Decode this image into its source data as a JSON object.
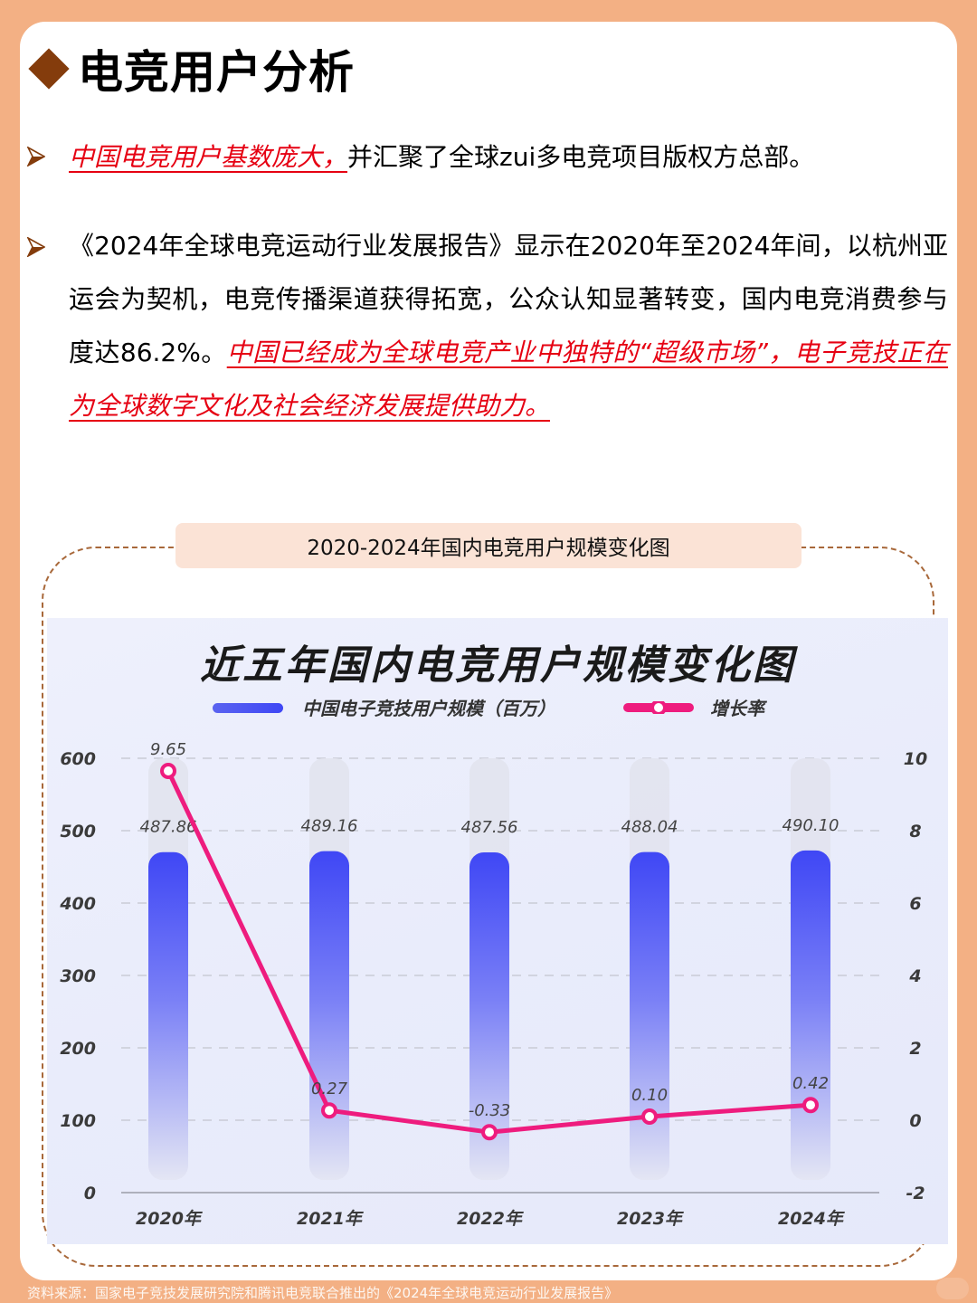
{
  "page": {
    "title": "电竞用户分析",
    "colors": {
      "background": "#F3B084",
      "title_diamond": "#843C0C",
      "highlight_red": "#E60012",
      "frame_dashed": "#A8683A",
      "caption_bg": "#FBE3D6",
      "bar_top": "#3F47F5",
      "bar_bottom": "#E6E8F6",
      "line": "#EE1C7E"
    }
  },
  "bullets": [
    {
      "icon": "arrow-bullet-icon",
      "highlight": "中国电竞用户基数庞大，",
      "text": "并汇聚了全球zui多电竞项目版权方总部。"
    },
    {
      "icon": "arrow-bullet-icon",
      "text": "《2024年全球电竞运动行业发展报告》显示在2020年至2024年间，以杭州亚运会为契机，电竞传播渠道获得拓宽，公众认知显著转变，国内电竞消费参与度达86.2%。",
      "highlight": "中国已经成为全球电竞产业中独特的“超级市场”，电子竞技正在为全球数字文化及社会经济发展提供助力。"
    }
  ],
  "chart_caption": "2020-2024年国内电竞用户规模变化图",
  "chart_data": {
    "type": "bar+line",
    "title": "近五年国内电竞用户规模变化图",
    "categories": [
      "2020年",
      "2021年",
      "2022年",
      "2023年",
      "2024年"
    ],
    "series": [
      {
        "name": "中国电子竞技用户规模（百万）",
        "type": "bar",
        "axis": "left",
        "values": [
          487.86,
          489.16,
          487.56,
          488.04,
          490.1
        ],
        "labels": [
          "487.86",
          "489.16",
          "487.56",
          "488.04",
          "490.10"
        ]
      },
      {
        "name": "增长率",
        "type": "line",
        "axis": "right",
        "values": [
          9.65,
          0.27,
          -0.33,
          0.1,
          0.42
        ],
        "labels": [
          "9.65",
          "0.27",
          "-0.33",
          "0.10",
          "0.42"
        ]
      }
    ],
    "left_axis": {
      "min": 0,
      "max": 600,
      "ticks": [
        "600",
        "500",
        "400",
        "300",
        "200",
        "100",
        "0"
      ]
    },
    "right_axis": {
      "min": -2,
      "max": 10,
      "ticks": [
        "10",
        "8",
        "6",
        "4",
        "2",
        "0",
        "-2"
      ]
    },
    "grid": true,
    "legend_position": "top"
  },
  "footer": {
    "source": "资料来源：国家电子竞技发展研究院和腾讯电竞联合推出的《2024年全球电竞运动行业发展报告》"
  }
}
